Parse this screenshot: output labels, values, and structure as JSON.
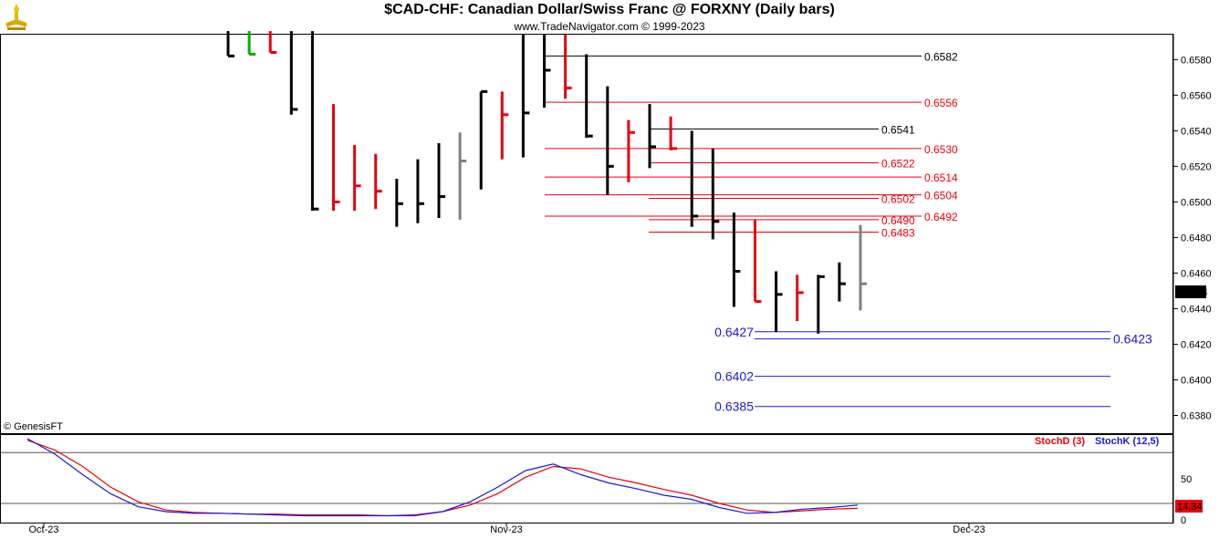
{
  "header": {
    "title": "$CAD-CHF:  Canadian Dollar/Swiss Franc @ FORXNY  (Daily bars)",
    "subtitle": "www.TradeNavigator.com © 1999-2023",
    "copyright": "© GenesisFT"
  },
  "colors": {
    "up": "#000000",
    "down": "#e8000b",
    "current": "#808080",
    "blue": "#1a1ad6",
    "stochD": "#e8000b",
    "stochK": "#1a1ad6"
  },
  "chart_data": [
    {
      "type": "ohlc",
      "price_axis": {
        "range": [
          0.637,
          0.6594
        ],
        "ticks": [
          "0.6580",
          "0.6560",
          "0.6540",
          "0.6520",
          "0.6500",
          "0.6480",
          "0.6460",
          "0.6440",
          "0.6420",
          "0.6400",
          "0.6380"
        ]
      },
      "last_price": "0.6454",
      "bars": [
        {
          "high": 0.6596,
          "low": 0.6582,
          "close": 0.6582,
          "color": "up"
        },
        {
          "high": 0.6596,
          "low": 0.6583,
          "close": 0.6583,
          "color": "green"
        },
        {
          "high": 0.6596,
          "low": 0.6584,
          "close": 0.6584,
          "color": "down"
        },
        {
          "high": 0.6596,
          "low": 0.6549,
          "close": 0.6552,
          "color": "up"
        },
        {
          "high": 0.6596,
          "low": 0.6495,
          "close": 0.6496,
          "color": "up"
        },
        {
          "high": 0.6555,
          "low": 0.6495,
          "close": 0.65,
          "color": "down"
        },
        {
          "high": 0.6532,
          "low": 0.6495,
          "close": 0.6509,
          "color": "down"
        },
        {
          "high": 0.6527,
          "low": 0.6496,
          "close": 0.6506,
          "color": "down"
        },
        {
          "high": 0.6513,
          "low": 0.6486,
          "close": 0.6499,
          "color": "up"
        },
        {
          "high": 0.6524,
          "low": 0.6488,
          "close": 0.6499,
          "color": "up"
        },
        {
          "high": 0.6533,
          "low": 0.6491,
          "close": 0.6503,
          "color": "up"
        },
        {
          "high": 0.6539,
          "low": 0.649,
          "close": 0.6523,
          "color": "current"
        },
        {
          "high": 0.6562,
          "low": 0.6507,
          "close": 0.6562,
          "color": "up"
        },
        {
          "high": 0.6562,
          "low": 0.6524,
          "close": 0.6549,
          "color": "down"
        },
        {
          "high": 0.6594,
          "low": 0.6525,
          "close": 0.655,
          "color": "up"
        },
        {
          "high": 0.6594,
          "low": 0.6553,
          "close": 0.6574,
          "color": "up"
        },
        {
          "high": 0.6594,
          "low": 0.6558,
          "close": 0.6564,
          "color": "down"
        },
        {
          "high": 0.6583,
          "low": 0.6536,
          "close": 0.6537,
          "color": "up"
        },
        {
          "high": 0.6565,
          "low": 0.6504,
          "close": 0.652,
          "color": "up"
        },
        {
          "high": 0.6546,
          "low": 0.6511,
          "close": 0.6539,
          "color": "down"
        },
        {
          "high": 0.6555,
          "low": 0.6519,
          "close": 0.6531,
          "color": "up"
        },
        {
          "high": 0.6548,
          "low": 0.6529,
          "close": 0.653,
          "color": "down"
        },
        {
          "high": 0.654,
          "low": 0.6486,
          "close": 0.6492,
          "color": "up"
        },
        {
          "high": 0.653,
          "low": 0.6479,
          "close": 0.6489,
          "color": "up"
        },
        {
          "high": 0.6494,
          "low": 0.6441,
          "close": 0.6461,
          "color": "up"
        },
        {
          "high": 0.649,
          "low": 0.6444,
          "close": 0.6444,
          "color": "down"
        },
        {
          "high": 0.6461,
          "low": 0.6427,
          "close": 0.6448,
          "color": "up"
        },
        {
          "high": 0.6459,
          "low": 0.6433,
          "close": 0.6449,
          "color": "down"
        },
        {
          "high": 0.6459,
          "low": 0.6426,
          "close": 0.6458,
          "color": "up"
        },
        {
          "high": 0.6466,
          "low": 0.6444,
          "close": 0.6454,
          "color": "up"
        },
        {
          "high": 0.6487,
          "low": 0.6439,
          "close": 0.6454,
          "color": "current"
        }
      ],
      "levels": [
        {
          "price": 0.6582,
          "label": "0.6582",
          "color": "up",
          "start": 0,
          "end": 1
        },
        {
          "price": 0.6556,
          "label": "0.6556",
          "color": "down",
          "start": 0,
          "end": 1
        },
        {
          "price": 0.6541,
          "label": "0.6541",
          "color": "up",
          "start": 1,
          "end": 0
        },
        {
          "price": 0.653,
          "label": "0.6530",
          "color": "down",
          "start": 0,
          "end": 1
        },
        {
          "price": 0.6522,
          "label": "0.6522",
          "color": "down",
          "start": 1,
          "end": 0
        },
        {
          "price": 0.6514,
          "label": "0.6514",
          "color": "down",
          "start": 0,
          "end": 1
        },
        {
          "price": 0.6504,
          "label": "0.6504",
          "color": "down",
          "start": 0,
          "end": 1
        },
        {
          "price": 0.6502,
          "label": "0.6502",
          "color": "down",
          "start": 1,
          "end": 0
        },
        {
          "price": 0.6492,
          "label": "0.6492",
          "color": "down",
          "start": 0,
          "end": 1
        },
        {
          "price": 0.649,
          "label": "0.6490",
          "color": "down",
          "start": 1,
          "end": 0
        },
        {
          "price": 0.6483,
          "label": "0.6483",
          "color": "down",
          "start": 1,
          "end": 0
        },
        {
          "price": 0.6427,
          "label": "0.6427",
          "color": "blue",
          "start": 2,
          "end": 2
        },
        {
          "price": 0.6423,
          "label": "0.6423",
          "color": "blue",
          "start": 2,
          "end": 2
        },
        {
          "price": 0.6402,
          "label": "0.6402",
          "color": "blue",
          "start": 2,
          "end": 2
        },
        {
          "price": 0.6385,
          "label": "0.6385",
          "color": "blue",
          "start": 2,
          "end": 2
        }
      ]
    },
    {
      "type": "line",
      "stoch_axis": {
        "range": [
          0,
          100
        ],
        "ticks": [
          "50",
          "0"
        ],
        "lines": [
          82,
          20
        ]
      },
      "last_value": "14.34",
      "series": [
        {
          "name": "StochD (3)",
          "color": "stochD",
          "values": [
            97,
            85,
            65,
            40,
            22,
            12,
            9,
            8,
            7,
            7,
            6,
            6,
            6,
            5,
            5,
            10,
            18,
            32,
            52,
            65,
            62,
            52,
            45,
            37,
            30,
            20,
            12,
            9,
            11,
            13,
            14
          ]
        },
        {
          "name": "StochK (12,5)",
          "color": "stochK",
          "values": [
            99,
            80,
            55,
            32,
            16,
            10,
            8,
            8,
            7,
            6,
            5,
            5,
            5,
            5,
            6,
            10,
            22,
            40,
            60,
            68,
            55,
            45,
            38,
            30,
            25,
            15,
            8,
            9,
            13,
            15,
            18
          ]
        }
      ]
    }
  ],
  "x_axis": {
    "labels": [
      {
        "text": "Oct-23",
        "index": 0
      },
      {
        "text": "Nov-23",
        "index": 22
      },
      {
        "text": "Dec-23",
        "index": 44
      }
    ]
  }
}
